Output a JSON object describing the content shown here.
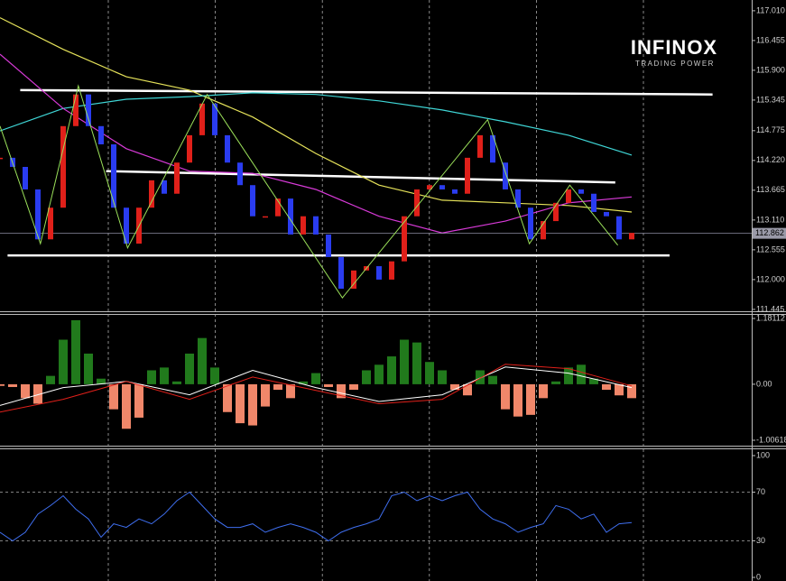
{
  "logo": {
    "name": "INFINOX",
    "tagline": "TRADING POWER"
  },
  "chart_data": [
    {
      "type": "candlestick",
      "values": [
        114.27,
        114.1,
        113.68,
        112.75,
        113.34,
        114.86,
        115.45,
        114.86,
        114.52,
        113.34,
        112.67,
        113.34,
        113.85,
        113.6,
        114.18,
        114.69,
        115.28,
        114.69,
        114.18,
        113.76,
        113.18,
        113.18,
        113.51,
        112.84,
        113.18,
        112.84,
        112.42,
        111.83,
        112.17,
        112.25,
        112.0,
        112.34,
        113.18,
        113.68,
        113.76,
        113.68,
        113.6,
        114.27,
        114.69,
        114.18,
        113.68,
        113.34,
        112.75,
        113.09,
        113.43,
        113.68,
        113.6,
        113.26,
        113.18,
        112.75,
        112.87
      ],
      "up_color": "#e0201a",
      "down_color": "#2a3cf0",
      "ylim": [
        111.41,
        117.21
      ],
      "yticks": [
        {
          "value": 117.01,
          "label": "117.010"
        },
        116.455,
        {
          "value": 115.9,
          "label": "115.900"
        },
        115.345,
        114.775,
        {
          "value": 114.22,
          "label": "114.220"
        },
        113.665,
        {
          "value": 113.11,
          "label": "113.110"
        },
        112.555,
        {
          "value": 112,
          "label": "112.000"
        },
        111.445
      ],
      "last_price": 112.862,
      "series": [
        {
          "color": "#e6e35a",
          "values": [
            116.88,
            116.29,
            115.78,
            115.53,
            115.03,
            114.35,
            113.76,
            113.48,
            113.43,
            113.38,
            113.26
          ]
        },
        {
          "color": "#3fd6d6",
          "values": [
            114.77,
            115.19,
            115.36,
            115.41,
            115.48,
            115.45,
            115.33,
            115.16,
            114.94,
            114.69,
            114.32
          ]
        },
        {
          "color": "#d83ad8",
          "values": [
            116.2,
            115.19,
            114.44,
            114.02,
            113.98,
            113.68,
            113.18,
            112.87,
            113.09,
            113.43,
            113.54
          ]
        }
      ],
      "zigzag": {
        "color": "#9be05a",
        "x": [
          0,
          3.2,
          6.2,
          10.1,
          16.4,
          27.1,
          38.6,
          41.9,
          45.1,
          48.9
        ],
        "values": [
          114.86,
          112.67,
          115.61,
          112.59,
          115.45,
          111.66,
          114.98,
          112.67,
          113.76,
          112.64
        ]
      },
      "levels": [
        {
          "color": "#ffffff",
          "x": [
            1.6,
            56.4
          ],
          "values": [
            115.53,
            115.45
          ]
        },
        {
          "color": "#ffffff",
          "x": [
            8.4,
            48.7
          ],
          "values": [
            114.02,
            113.81
          ]
        },
        {
          "color": "#ffffff",
          "x": [
            0.6,
            53
          ],
          "values": [
            112.45,
            112.45
          ]
        }
      ]
    },
    {
      "type": "bar",
      "values": [
        -0.03,
        -0.05,
        -0.25,
        -0.35,
        0.15,
        0.8,
        1.15,
        0.55,
        0.1,
        -0.45,
        -0.8,
        -0.6,
        0.25,
        0.3,
        0.05,
        0.55,
        0.83,
        0.3,
        -0.5,
        -0.7,
        -0.74,
        -0.4,
        -0.1,
        -0.25,
        0.05,
        0.2,
        -0.05,
        -0.25,
        -0.1,
        0.25,
        0.35,
        0.5,
        0.8,
        0.75,
        0.4,
        0.25,
        -0.1,
        -0.2,
        0.25,
        0.15,
        -0.45,
        -0.58,
        -0.55,
        -0.25,
        0.05,
        0.3,
        0.35,
        0.1,
        -0.1,
        -0.2,
        -0.25
      ],
      "pos_color": "#217a1c",
      "neg_color": "#f0876a",
      "ylim": [
        -1.00618,
        1.18112
      ],
      "yticks": [
        1.18112,
        {
          "value": 0,
          "label": "0.00"
        },
        -1.00618
      ],
      "series": [
        {
          "color": "#ffffff",
          "values": [
            -0.38,
            -0.06,
            0.05,
            -0.19,
            0.25,
            -0.06,
            -0.31,
            -0.19,
            0.31,
            0.2,
            -0.06
          ]
        },
        {
          "color": "#e0201a",
          "values": [
            -0.5,
            -0.27,
            0.05,
            -0.27,
            0.13,
            -0.11,
            -0.35,
            -0.27,
            0.36,
            0.28,
            -0.03
          ]
        }
      ]
    },
    {
      "type": "line",
      "values": [
        37,
        30,
        37,
        52,
        59,
        67,
        56,
        48,
        33,
        44,
        41,
        48,
        44,
        52,
        63,
        70,
        59,
        48,
        41,
        41,
        44,
        37,
        41,
        44,
        41,
        37,
        30,
        37,
        41,
        44,
        48,
        67,
        70,
        63,
        67,
        63,
        67,
        70,
        56,
        48,
        44,
        37,
        41,
        44,
        59,
        56,
        48,
        52,
        37,
        44,
        45
      ],
      "color": "#3f6ff0",
      "ylim": [
        0,
        100
      ],
      "yticks": [
        100,
        70,
        30,
        0
      ],
      "levels": [
        70,
        30
      ]
    }
  ]
}
